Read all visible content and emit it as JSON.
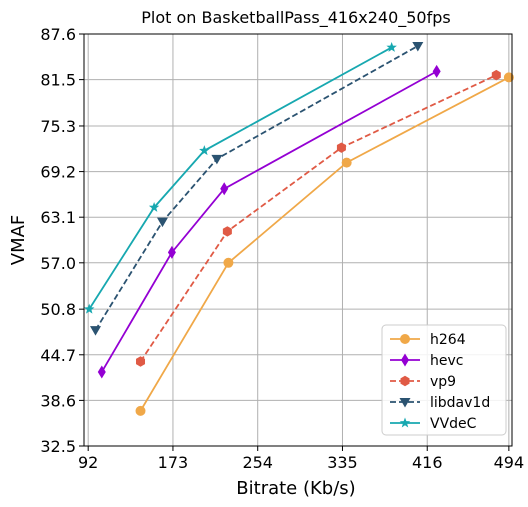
{
  "chart_data": {
    "type": "line",
    "title": "Plot on BasketballPass_416x240_50fps",
    "xlabel": "Bitrate (Kb/s)",
    "ylabel": "VMAF",
    "xlim": [
      88,
      497
    ],
    "ylim": [
      32.5,
      87.6
    ],
    "xticks": [
      92,
      173,
      254,
      335,
      416,
      494
    ],
    "xtick_labels": [
      "92",
      "173",
      "254",
      "335",
      "416",
      "494"
    ],
    "yticks": [
      32.5,
      38.6,
      44.7,
      50.8,
      57.0,
      63.1,
      69.2,
      75.3,
      81.5,
      87.6
    ],
    "ytick_labels": [
      "32.5",
      "38.6",
      "44.7",
      "50.8",
      "57.0",
      "63.1",
      "69.2",
      "75.3",
      "81.5",
      "87.6"
    ],
    "grid": true,
    "legend_position": "bottom-right",
    "series": [
      {
        "name": "h264",
        "color": "#f0a848",
        "dash": "solid",
        "marker": "circle",
        "x": [
          142,
          226,
          339,
          494
        ],
        "y": [
          37.2,
          57.0,
          70.4,
          81.8
        ]
      },
      {
        "name": "hevc",
        "color": "#9400d3",
        "dash": "solid",
        "marker": "diamond",
        "x": [
          105,
          172,
          222,
          425
        ],
        "y": [
          42.4,
          58.4,
          66.9,
          82.6
        ]
      },
      {
        "name": "vp9",
        "color": "#e05a45",
        "dash": "dashed",
        "marker": "hexagon",
        "x": [
          142,
          225,
          334,
          482
        ],
        "y": [
          43.8,
          61.2,
          72.4,
          82.1
        ]
      },
      {
        "name": "libdav1d",
        "color": "#2b5371",
        "dash": "dashed",
        "marker": "triangle-down",
        "x": [
          99,
          163,
          215,
          407
        ],
        "y": [
          48.0,
          62.5,
          70.9,
          86.0
        ]
      },
      {
        "name": "VVdeC",
        "color": "#17a8b0",
        "dash": "solid",
        "marker": "star",
        "x": [
          93,
          155,
          203,
          382
        ],
        "y": [
          50.8,
          64.4,
          72.0,
          85.8
        ]
      }
    ]
  }
}
